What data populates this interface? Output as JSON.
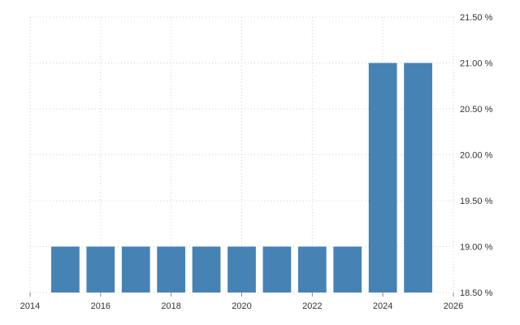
{
  "chart_data": {
    "type": "bar",
    "title": "",
    "xlabel": "",
    "ylabel": "",
    "x": [
      2015,
      2016,
      2017,
      2018,
      2019,
      2020,
      2021,
      2022,
      2023,
      2024,
      2025
    ],
    "values": [
      19.0,
      19.0,
      19.0,
      19.0,
      19.0,
      19.0,
      19.0,
      19.0,
      19.0,
      21.0,
      21.0
    ],
    "xlim": [
      2014,
      2026
    ],
    "ylim": [
      18.5,
      21.5
    ],
    "x_ticks": [
      2014,
      2016,
      2018,
      2020,
      2022,
      2024,
      2026
    ],
    "x_tick_labels": [
      "2014",
      "2016",
      "2018",
      "2020",
      "2022",
      "2024",
      "2026"
    ],
    "y_ticks": [
      18.5,
      19.0,
      19.5,
      20.0,
      20.5,
      21.0,
      21.5
    ],
    "y_tick_labels": [
      "18.50 %",
      "19.00 %",
      "19.50 %",
      "20.00 %",
      "20.50 %",
      "21.00 %",
      "21.50 %"
    ],
    "y_axis_side": "right",
    "grid": true,
    "colors": {
      "bar": "#4682b4",
      "grid": "#d0d0d0"
    }
  }
}
